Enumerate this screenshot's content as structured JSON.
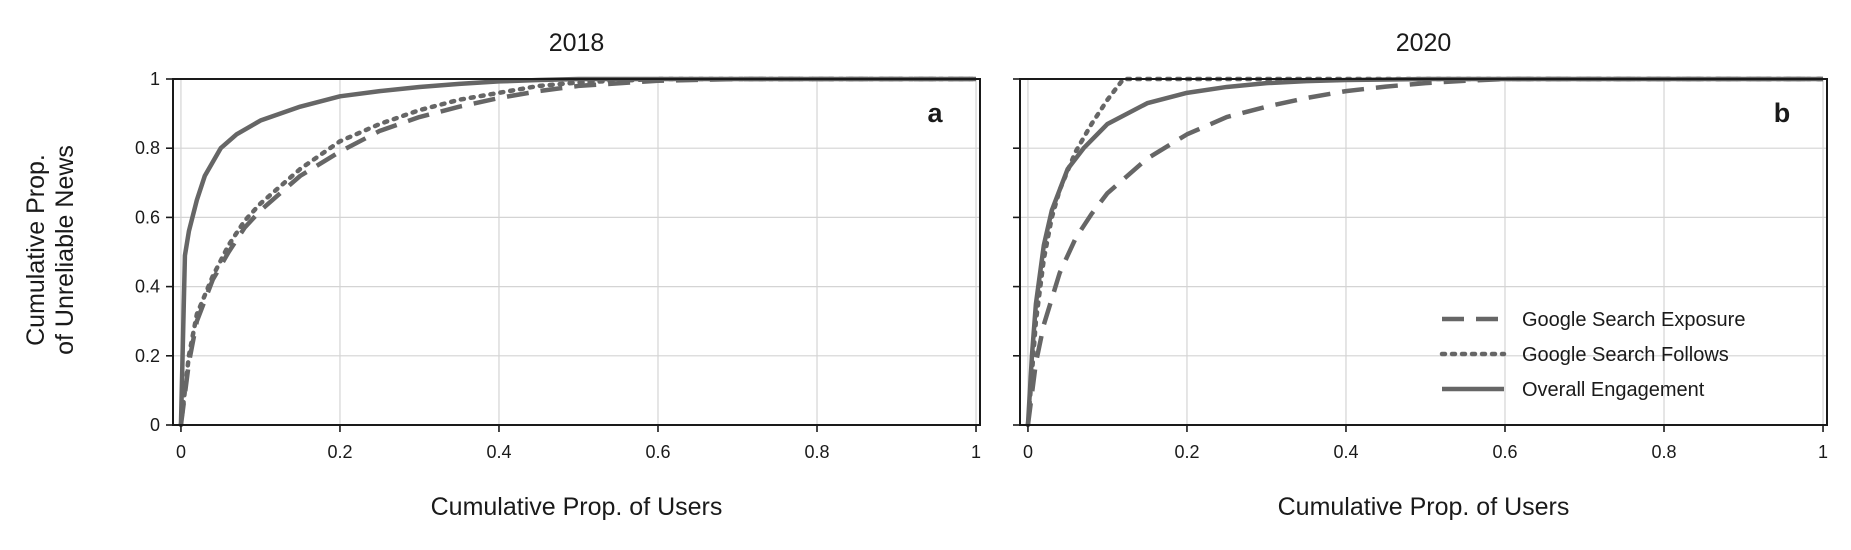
{
  "chart_data": {
    "type": "line",
    "ylabel": [
      "Cumulative Prop.",
      "of Unreliable News"
    ],
    "xlabel": "Cumulative Prop. of Users",
    "xticks": [
      0,
      0.2,
      0.4,
      0.6,
      0.8,
      1
    ],
    "xtick_labels": [
      "0",
      "0.2",
      "0.4",
      "0.6",
      "0.8",
      "1"
    ],
    "yticks": [
      0,
      0.2,
      0.4,
      0.6,
      0.8,
      1
    ],
    "ytick_labels": [
      "0",
      "0.2",
      "0.4",
      "0.6",
      "0.8",
      "1"
    ],
    "xlim": [
      -0.01,
      1.005
    ],
    "ylim": [
      0,
      1
    ],
    "grid": true,
    "line_color": "#666666",
    "legend": {
      "panel": 1,
      "placement": "bottom-right",
      "entries": [
        {
          "label": "Google Search Exposure",
          "style": "dashed"
        },
        {
          "label": "Google Search Follows",
          "style": "dotted"
        },
        {
          "label": "Overall Engagement",
          "style": "solid"
        }
      ]
    },
    "panels": [
      {
        "title": "2018",
        "letter": "a",
        "series": [
          {
            "name": "Google Search Exposure",
            "style": "dashed",
            "x": [
              0,
              0.01,
              0.02,
              0.04,
              0.06,
              0.08,
              0.1,
              0.15,
              0.2,
              0.25,
              0.3,
              0.35,
              0.4,
              0.45,
              0.5,
              0.6,
              0.7,
              1.0
            ],
            "y": [
              0,
              0.18,
              0.3,
              0.42,
              0.5,
              0.57,
              0.62,
              0.72,
              0.79,
              0.85,
              0.89,
              0.92,
              0.945,
              0.965,
              0.98,
              0.995,
              1.0,
              1.0
            ]
          },
          {
            "name": "Google Search Follows",
            "style": "dotted",
            "x": [
              0,
              0.01,
              0.02,
              0.04,
              0.06,
              0.08,
              0.1,
              0.15,
              0.2,
              0.25,
              0.3,
              0.35,
              0.4,
              0.45,
              0.5,
              0.6,
              1.0
            ],
            "y": [
              0,
              0.2,
              0.32,
              0.43,
              0.52,
              0.59,
              0.64,
              0.74,
              0.82,
              0.87,
              0.91,
              0.94,
              0.96,
              0.98,
              0.99,
              1.0,
              1.0
            ]
          },
          {
            "name": "Overall Engagement",
            "style": "solid",
            "x": [
              0,
              0.005,
              0.01,
              0.02,
              0.03,
              0.05,
              0.07,
              0.1,
              0.15,
              0.2,
              0.25,
              0.3,
              0.35,
              0.4,
              0.45,
              0.5,
              1.0
            ],
            "y": [
              0,
              0.49,
              0.56,
              0.65,
              0.72,
              0.8,
              0.84,
              0.88,
              0.92,
              0.95,
              0.965,
              0.977,
              0.986,
              0.993,
              0.997,
              1.0,
              1.0
            ]
          }
        ]
      },
      {
        "title": "2020",
        "letter": "b",
        "series": [
          {
            "name": "Google Search Exposure",
            "style": "dashed",
            "x": [
              0,
              0.01,
              0.02,
              0.04,
              0.06,
              0.08,
              0.1,
              0.15,
              0.2,
              0.25,
              0.3,
              0.35,
              0.4,
              0.45,
              0.5,
              0.55,
              0.6,
              0.7,
              1.0
            ],
            "y": [
              0,
              0.18,
              0.29,
              0.44,
              0.54,
              0.61,
              0.67,
              0.77,
              0.84,
              0.89,
              0.92,
              0.945,
              0.965,
              0.978,
              0.988,
              0.995,
              1.0,
              1.0,
              1.0
            ]
          },
          {
            "name": "Google Search Follows",
            "style": "dotted",
            "x": [
              0,
              0.01,
              0.02,
              0.03,
              0.04,
              0.06,
              0.08,
              0.1,
              0.12,
              0.2,
              1.0
            ],
            "y": [
              0,
              0.3,
              0.48,
              0.6,
              0.68,
              0.79,
              0.87,
              0.94,
              1.0,
              1.0,
              1.0
            ]
          },
          {
            "name": "Overall Engagement",
            "style": "solid",
            "x": [
              0,
              0.005,
              0.01,
              0.02,
              0.03,
              0.05,
              0.07,
              0.1,
              0.15,
              0.2,
              0.25,
              0.3,
              0.35,
              0.4,
              0.5,
              1.0
            ],
            "y": [
              0,
              0.2,
              0.35,
              0.52,
              0.62,
              0.74,
              0.8,
              0.87,
              0.93,
              0.96,
              0.977,
              0.988,
              0.994,
              0.997,
              1.0,
              1.0
            ]
          }
        ]
      }
    ]
  }
}
